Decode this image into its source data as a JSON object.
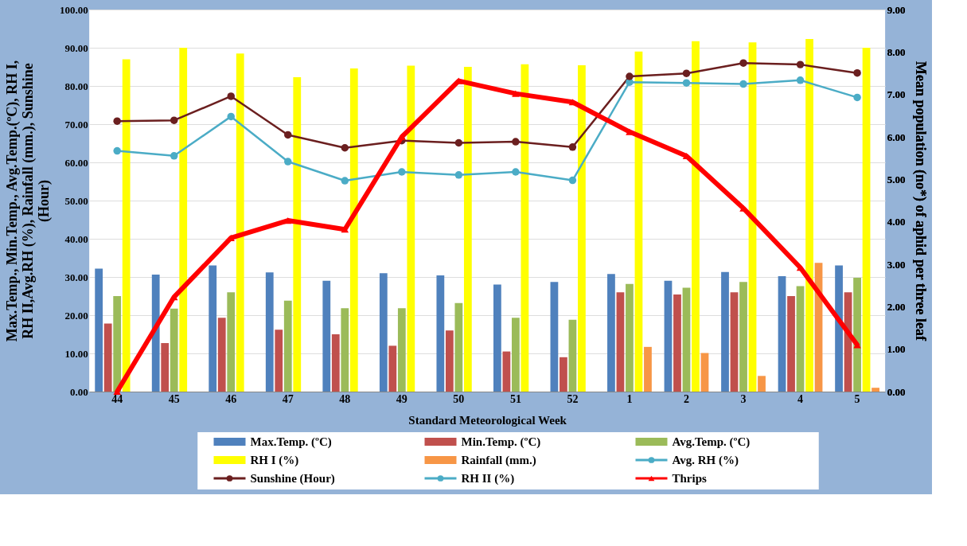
{
  "chart_data": {
    "type": "bar",
    "xlabel": "Standard Meteorological Week",
    "ylabel": "Max.Temp., Min.Temp., Avg.Temp.(ºC), RH I, RH II,Avg.RH (%), Rainfall (mm.), Sunshine (Hour)",
    "y2label": "Mean population (no*) of aphid per three leaf",
    "categories": [
      "44",
      "45",
      "46",
      "47",
      "48",
      "49",
      "50",
      "51",
      "52",
      "1",
      "2",
      "3",
      "4",
      "5"
    ],
    "ylim": [
      0,
      100
    ],
    "yticks": [
      {
        "value": 0,
        "label": "0.00"
      },
      {
        "value": 10,
        "label": "10.00"
      },
      {
        "value": 20,
        "label": "20.00"
      },
      {
        "value": 30,
        "label": "30.00"
      },
      {
        "value": 40,
        "label": "40.00"
      },
      {
        "value": 50,
        "label": "50.00"
      },
      {
        "value": 60,
        "label": "60.00"
      },
      {
        "value": 70,
        "label": "70.00"
      },
      {
        "value": 80,
        "label": "80.00"
      },
      {
        "value": 90,
        "label": "90.00"
      },
      {
        "value": 100,
        "label": "100.00"
      }
    ],
    "y2lim": [
      0,
      9
    ],
    "y2ticks": [
      {
        "value": 0,
        "label": "0.00"
      },
      {
        "value": 1,
        "label": "1.00"
      },
      {
        "value": 2,
        "label": "2.00"
      },
      {
        "value": 3,
        "label": "3.00"
      },
      {
        "value": 4,
        "label": "4.00"
      },
      {
        "value": 5,
        "label": "5.00"
      },
      {
        "value": 6,
        "label": "6.00"
      },
      {
        "value": 7,
        "label": "7.00"
      },
      {
        "value": 8,
        "label": "8.00"
      },
      {
        "value": 9,
        "label": "9.00"
      }
    ],
    "grid": "y",
    "legend": "bottom",
    "line_style": "solid",
    "series": [
      {
        "name": "Max.Temp. (ºC)",
        "color": "#4f81bd",
        "values": [
          32.2,
          30.6,
          33.0,
          31.2,
          29.0,
          31.0,
          30.4,
          28.0,
          28.7,
          30.8,
          29.0,
          31.3,
          30.2,
          33.0
        ]
      },
      {
        "name": "Min.Temp. (ºC)",
        "color": "#c0504d",
        "values": [
          17.8,
          12.7,
          19.3,
          16.2,
          15.0,
          12.0,
          16.0,
          10.5,
          9.0,
          26.0,
          25.4,
          26.0,
          25.0,
          26.0
        ]
      },
      {
        "name": "Avg.Temp. (ºC)",
        "color": "#9bbb59",
        "values": [
          25.0,
          21.7,
          26.0,
          23.8,
          21.8,
          21.8,
          23.2,
          19.3,
          18.8,
          28.2,
          27.2,
          28.7,
          27.6,
          29.8
        ]
      },
      {
        "name": "RH I (%)",
        "color": "#ffff00",
        "values": [
          87.0,
          90.0,
          88.5,
          82.3,
          84.6,
          85.3,
          85.0,
          85.7,
          85.4,
          89.0,
          91.7,
          91.4,
          92.3,
          90.0
        ]
      },
      {
        "name": "Rainfall (mm.)",
        "color": "#f79646",
        "values": [
          0,
          0,
          0,
          0,
          0,
          0,
          0,
          0,
          0,
          11.7,
          10.1,
          4.1,
          33.7,
          1.0
        ]
      },
      {
        "name": "Avg. RH (%)",
        "type": "line",
        "color": "#4bacc6",
        "marker": "circle",
        "values": [
          63.0,
          61.7,
          72.0,
          60.2,
          55.2,
          57.5,
          56.7,
          57.5,
          55.3,
          81.0,
          80.8,
          80.5,
          81.5,
          77.0
        ]
      },
      {
        "name": "Sunshine (Hour)",
        "type": "line",
        "color": "#6b1f1f",
        "marker": "circle",
        "values": [
          70.8,
          71.0,
          77.3,
          67.2,
          63.8,
          65.7,
          65.1,
          65.4,
          64.0,
          82.5,
          83.3,
          86.0,
          85.6,
          83.4
        ]
      },
      {
        "name": "RH II (%)",
        "type": "line",
        "color": "#4bacc6",
        "marker": "circle",
        "values": [
          null,
          null,
          null,
          null,
          null,
          null,
          null,
          null,
          null,
          null,
          null,
          null,
          null,
          null
        ]
      },
      {
        "name": "Thrips",
        "type": "line",
        "axis": "y2",
        "color": "#ff0000",
        "marker": "triangle",
        "values": [
          0.0,
          2.23,
          3.62,
          4.03,
          3.82,
          6.0,
          7.32,
          7.02,
          6.82,
          6.12,
          5.55,
          4.32,
          2.92,
          1.1
        ]
      }
    ]
  }
}
